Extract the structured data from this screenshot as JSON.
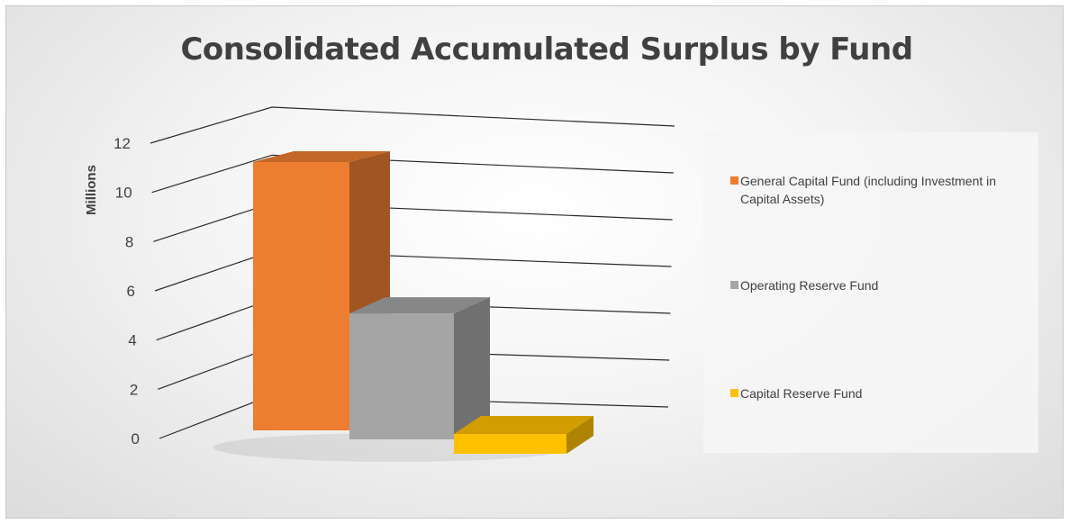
{
  "chart_data": {
    "type": "bar",
    "title": "Consolidated Accumulated Surplus by Fund",
    "ylabel": "Millions",
    "ylim": [
      0,
      12
    ],
    "yticks": [
      "0",
      "2",
      "4",
      "6",
      "8",
      "10",
      "12"
    ],
    "grid": true,
    "legend_position": "right",
    "series": [
      {
        "name": "General Capital Fund (including Investment in Capital Assets)",
        "value": 10.6,
        "color": "#ED7D31"
      },
      {
        "name": "Operating Reserve Fund",
        "value": 4.7,
        "color": "#A5A5A5"
      },
      {
        "name": "Capital Reserve Fund",
        "value": 0.3,
        "color": "#FFC000"
      }
    ]
  }
}
